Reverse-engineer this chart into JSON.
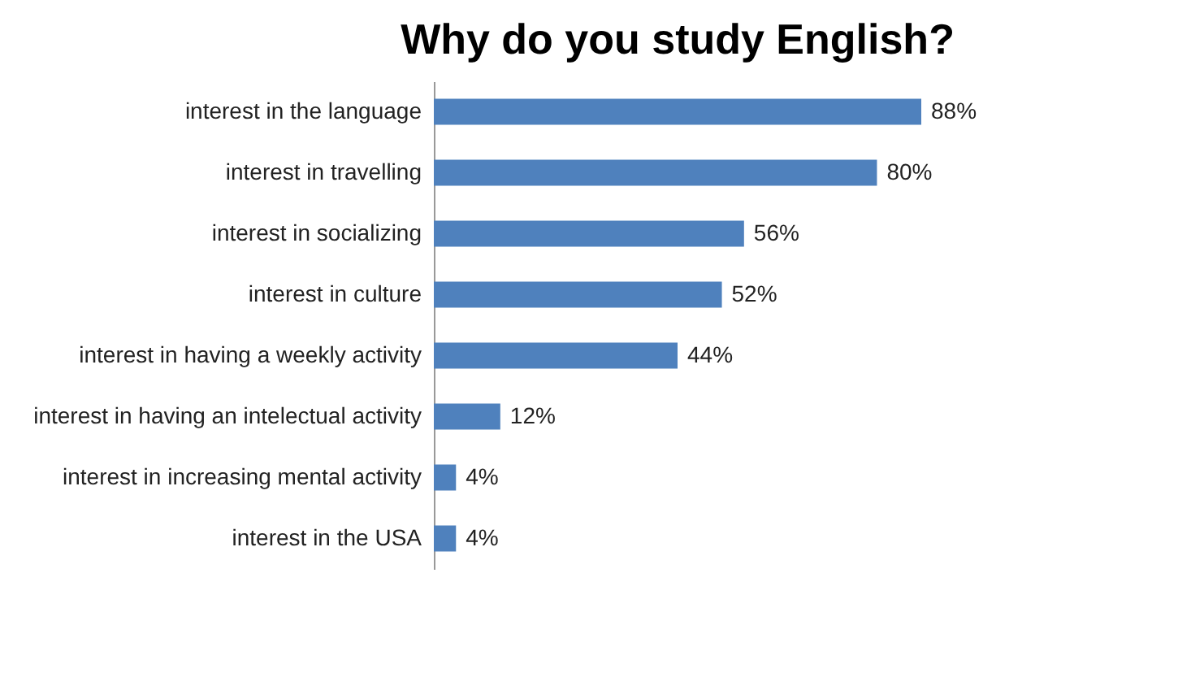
{
  "chart_data": {
    "type": "bar",
    "orientation": "horizontal",
    "title": "Why do you study English?",
    "categories": [
      "interest in the language",
      "interest in travelling",
      "interest in socializing",
      "interest in culture",
      "interest in having a weekly activity",
      "interest in having an intelectual activity",
      "interest in increasing mental activity",
      "interest in the USA"
    ],
    "values": [
      88,
      80,
      56,
      52,
      44,
      12,
      4,
      4
    ],
    "value_labels": [
      "88%",
      "80%",
      "56%",
      "52%",
      "44%",
      "12%",
      "4%",
      "4%"
    ],
    "color": "#4f81bd"
  }
}
